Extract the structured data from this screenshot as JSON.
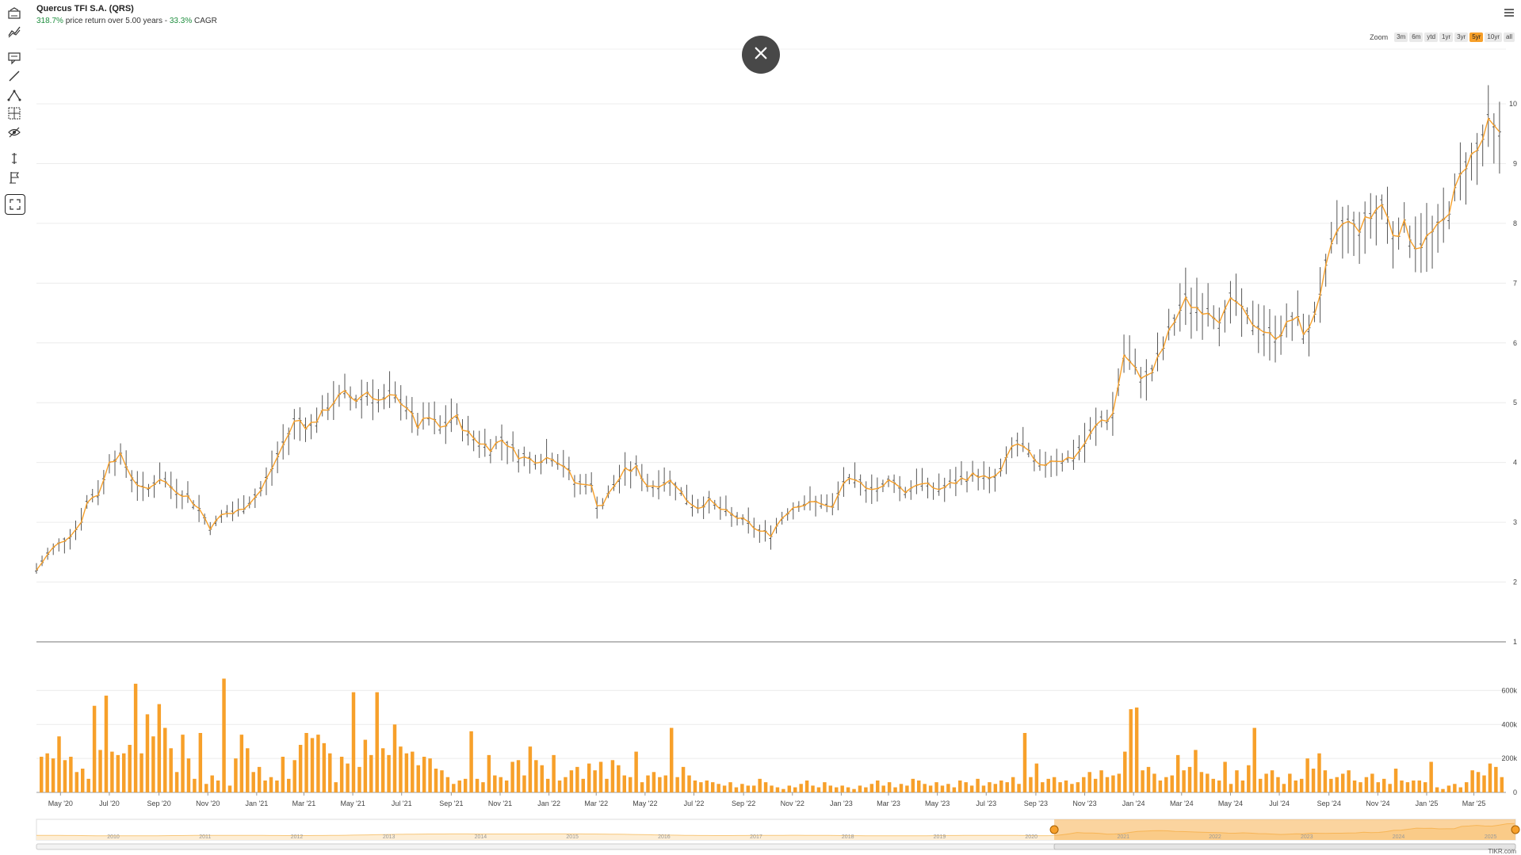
{
  "header": {
    "title": "Quercus TFI S.A. (QRS)",
    "return_pct": "318.7%",
    "return_text": "price return over 5.00 years -",
    "cagr_pct": "33.3%",
    "cagr_text": "CAGR"
  },
  "zoom": {
    "label": "Zoom",
    "options": [
      "3m",
      "6m",
      "ytd",
      "1yr",
      "3yr",
      "5yr",
      "10yr",
      "all"
    ],
    "active": "5yr"
  },
  "toolbar_icons": [
    "indicators-icon",
    "comparison-icon",
    "annotation-icon",
    "line-icon",
    "fibonacci-icon",
    "measure-icon",
    "visibility-icon",
    "vertical-line-icon",
    "flag-icon",
    "fullscreen-icon"
  ],
  "colors": {
    "accent": "#f7a02a",
    "ohlc": "#555555",
    "close_bg": "#484848"
  },
  "watermark": "TIKR.com",
  "chart_data": {
    "type": "line",
    "title": "Quercus TFI S.A. (QRS)",
    "price": {
      "ylim": [
        1,
        10
      ],
      "yticks": [
        1,
        2,
        3,
        4,
        5,
        6,
        7,
        8,
        9,
        10
      ],
      "anchors": [
        [
          "2020-04-01",
          2.2
        ],
        [
          "2020-04-20",
          2.55
        ],
        [
          "2020-05-10",
          2.75
        ],
        [
          "2020-05-25",
          2.95
        ],
        [
          "2020-06-05",
          3.4
        ],
        [
          "2020-06-20",
          3.5
        ],
        [
          "2020-07-01",
          4.05
        ],
        [
          "2020-07-15",
          4.1
        ],
        [
          "2020-08-01",
          3.7
        ],
        [
          "2020-08-15",
          3.5
        ],
        [
          "2020-09-01",
          3.75
        ],
        [
          "2020-09-20",
          3.55
        ],
        [
          "2020-10-05",
          3.45
        ],
        [
          "2020-10-20",
          3.25
        ],
        [
          "2020-11-05",
          2.9
        ],
        [
          "2020-11-20",
          3.15
        ],
        [
          "2020-12-05",
          3.15
        ],
        [
          "2020-12-20",
          3.3
        ],
        [
          "2021-01-05",
          3.5
        ],
        [
          "2021-01-20",
          3.9
        ],
        [
          "2021-02-05",
          4.35
        ],
        [
          "2021-02-20",
          4.75
        ],
        [
          "2021-03-05",
          4.6
        ],
        [
          "2021-03-20",
          4.75
        ],
        [
          "2021-04-05",
          5.0
        ],
        [
          "2021-04-20",
          5.15
        ],
        [
          "2021-05-05",
          5.05
        ],
        [
          "2021-05-20",
          5.2
        ],
        [
          "2021-06-05",
          5.0
        ],
        [
          "2021-06-20",
          5.1
        ],
        [
          "2021-07-05",
          5.0
        ],
        [
          "2021-07-20",
          4.6
        ],
        [
          "2021-08-05",
          4.75
        ],
        [
          "2021-08-20",
          4.55
        ],
        [
          "2021-09-05",
          4.8
        ],
        [
          "2021-09-20",
          4.5
        ],
        [
          "2021-10-05",
          4.35
        ],
        [
          "2021-10-20",
          4.25
        ],
        [
          "2021-11-05",
          4.4
        ],
        [
          "2021-11-20",
          4.15
        ],
        [
          "2021-12-05",
          4.05
        ],
        [
          "2021-12-20",
          4.05
        ],
        [
          "2022-01-05",
          4.1
        ],
        [
          "2022-01-20",
          3.95
        ],
        [
          "2022-02-05",
          3.6
        ],
        [
          "2022-02-20",
          3.7
        ],
        [
          "2022-03-05",
          3.2
        ],
        [
          "2022-03-20",
          3.55
        ],
        [
          "2022-04-05",
          3.85
        ],
        [
          "2022-04-20",
          3.9
        ],
        [
          "2022-05-05",
          3.6
        ],
        [
          "2022-05-20",
          3.65
        ],
        [
          "2022-06-05",
          3.7
        ],
        [
          "2022-06-20",
          3.4
        ],
        [
          "2022-07-05",
          3.25
        ],
        [
          "2022-07-20",
          3.35
        ],
        [
          "2022-08-05",
          3.2
        ],
        [
          "2022-08-20",
          3.1
        ],
        [
          "2022-09-05",
          3.0
        ],
        [
          "2022-09-20",
          2.85
        ],
        [
          "2022-10-05",
          2.8
        ],
        [
          "2022-10-20",
          3.1
        ],
        [
          "2022-11-05",
          3.3
        ],
        [
          "2022-11-20",
          3.3
        ],
        [
          "2022-12-05",
          3.35
        ],
        [
          "2022-12-20",
          3.2
        ],
        [
          "2023-01-05",
          3.7
        ],
        [
          "2023-01-20",
          3.65
        ],
        [
          "2023-02-05",
          3.6
        ],
        [
          "2023-02-20",
          3.55
        ],
        [
          "2023-03-05",
          3.75
        ],
        [
          "2023-03-20",
          3.5
        ],
        [
          "2023-04-05",
          3.65
        ],
        [
          "2023-04-20",
          3.6
        ],
        [
          "2023-05-05",
          3.55
        ],
        [
          "2023-05-20",
          3.65
        ],
        [
          "2023-06-05",
          3.75
        ],
        [
          "2023-06-20",
          3.8
        ],
        [
          "2023-07-05",
          3.7
        ],
        [
          "2023-07-20",
          3.85
        ],
        [
          "2023-08-05",
          4.35
        ],
        [
          "2023-08-20",
          4.2
        ],
        [
          "2023-09-05",
          3.9
        ],
        [
          "2023-09-20",
          4.05
        ],
        [
          "2023-10-05",
          4.05
        ],
        [
          "2023-10-20",
          4.1
        ],
        [
          "2023-11-05",
          4.4
        ],
        [
          "2023-11-20",
          4.7
        ],
        [
          "2023-12-05",
          4.75
        ],
        [
          "2023-12-20",
          5.8
        ],
        [
          "2024-01-05",
          5.5
        ],
        [
          "2024-01-20",
          5.4
        ],
        [
          "2024-02-05",
          5.85
        ],
        [
          "2024-02-20",
          6.35
        ],
        [
          "2024-03-05",
          6.7
        ],
        [
          "2024-03-20",
          6.6
        ],
        [
          "2024-04-05",
          6.55
        ],
        [
          "2024-04-20",
          6.4
        ],
        [
          "2024-05-05",
          6.75
        ],
        [
          "2024-05-20",
          6.4
        ],
        [
          "2024-06-05",
          6.3
        ],
        [
          "2024-06-20",
          6.1
        ],
        [
          "2024-07-05",
          6.2
        ],
        [
          "2024-07-20",
          6.45
        ],
        [
          "2024-08-05",
          6.1
        ],
        [
          "2024-08-20",
          6.8
        ],
        [
          "2024-09-05",
          7.6
        ],
        [
          "2024-09-20",
          8.05
        ],
        [
          "2024-10-05",
          7.9
        ],
        [
          "2024-10-20",
          8.05
        ],
        [
          "2024-11-05",
          8.35
        ],
        [
          "2024-11-20",
          7.85
        ],
        [
          "2024-12-05",
          7.95
        ],
        [
          "2024-12-20",
          7.6
        ],
        [
          "2025-01-05",
          7.8
        ],
        [
          "2025-01-20",
          7.95
        ],
        [
          "2025-02-05",
          8.5
        ],
        [
          "2025-02-20",
          9.05
        ],
        [
          "2025-03-05",
          9.2
        ],
        [
          "2025-03-20",
          9.65
        ],
        [
          "2025-04-05",
          9.4
        ]
      ]
    },
    "volume": {
      "ylim": [
        0,
        700000
      ],
      "yticks": [
        0,
        200000,
        400000,
        600000
      ],
      "ytick_labels": [
        "0",
        "200k",
        "400k",
        "600k"
      ],
      "values": [
        210000,
        230000,
        200000,
        330000,
        190000,
        210000,
        120000,
        140000,
        80000,
        510000,
        250000,
        570000,
        240000,
        220000,
        230000,
        280000,
        640000,
        230000,
        460000,
        330000,
        520000,
        380000,
        260000,
        120000,
        340000,
        200000,
        80000,
        350000,
        50000,
        100000,
        70000,
        670000,
        40000,
        200000,
        340000,
        260000,
        120000,
        150000,
        70000,
        90000,
        70000,
        210000,
        80000,
        190000,
        280000,
        350000,
        320000,
        340000,
        290000,
        230000,
        60000,
        210000,
        170000,
        590000,
        150000,
        310000,
        220000,
        590000,
        260000,
        220000,
        400000,
        270000,
        230000,
        240000,
        160000,
        210000,
        200000,
        140000,
        130000,
        90000,
        50000,
        70000,
        80000,
        360000,
        80000,
        60000,
        220000,
        100000,
        90000,
        70000,
        180000,
        190000,
        100000,
        270000,
        190000,
        160000,
        80000,
        220000,
        70000,
        90000,
        130000,
        150000,
        80000,
        170000,
        130000,
        180000,
        80000,
        190000,
        160000,
        100000,
        90000,
        240000,
        60000,
        100000,
        120000,
        90000,
        100000,
        380000,
        90000,
        150000,
        100000,
        70000,
        60000,
        70000,
        60000,
        50000,
        40000,
        60000,
        30000,
        50000,
        40000,
        40000,
        80000,
        60000,
        40000,
        30000,
        20000,
        40000,
        30000,
        50000,
        70000,
        40000,
        30000,
        60000,
        40000,
        30000,
        40000,
        30000,
        20000,
        40000,
        30000,
        50000,
        70000,
        40000,
        60000,
        30000,
        50000,
        40000,
        80000,
        70000,
        50000,
        40000,
        60000,
        40000,
        50000,
        30000,
        70000,
        60000,
        40000,
        80000,
        40000,
        60000,
        50000,
        70000,
        60000,
        90000,
        50000,
        350000,
        90000,
        170000,
        60000,
        80000,
        90000,
        60000,
        70000,
        50000,
        60000,
        90000,
        120000,
        80000,
        130000,
        90000,
        100000,
        110000,
        240000,
        490000,
        500000,
        130000,
        150000,
        110000,
        70000,
        90000,
        100000,
        220000,
        130000,
        150000,
        250000,
        120000,
        110000,
        80000,
        70000,
        180000,
        50000,
        130000,
        70000,
        160000,
        380000,
        80000,
        110000,
        130000,
        90000,
        50000,
        110000,
        70000,
        80000,
        200000,
        140000,
        230000,
        130000,
        80000,
        90000,
        110000,
        130000,
        70000,
        60000,
        90000,
        110000,
        60000,
        80000,
        50000,
        140000,
        70000,
        60000,
        70000,
        70000,
        60000,
        180000,
        30000,
        20000,
        40000,
        50000,
        30000,
        60000,
        130000,
        120000,
        100000,
        170000,
        150000,
        90000
      ]
    },
    "x_ticks": [
      "May '20",
      "Jul '20",
      "Sep '20",
      "Nov '20",
      "Jan '21",
      "Mar '21",
      "May '21",
      "Jul '21",
      "Sep '21",
      "Nov '21",
      "Jan '22",
      "Mar '22",
      "May '22",
      "Jul '22",
      "Sep '22",
      "Nov '22",
      "Jan '23",
      "Mar '23",
      "May '23",
      "Jul '23",
      "Sep '23",
      "Nov '23",
      "Jan '24",
      "Mar '24",
      "May '24",
      "Jul '24",
      "Sep '24",
      "Nov '24",
      "Jan '25",
      "Mar '25"
    ],
    "x_tick_dates": [
      "2020-05-01",
      "2020-07-01",
      "2020-09-01",
      "2020-11-01",
      "2021-01-01",
      "2021-03-01",
      "2021-05-01",
      "2021-07-01",
      "2021-09-01",
      "2021-11-01",
      "2022-01-01",
      "2022-03-01",
      "2022-05-01",
      "2022-07-01",
      "2022-09-01",
      "2022-11-01",
      "2023-01-01",
      "2023-03-01",
      "2023-05-01",
      "2023-07-01",
      "2023-09-01",
      "2023-11-01",
      "2024-01-01",
      "2024-03-01",
      "2024-05-01",
      "2024-07-01",
      "2024-09-01",
      "2024-11-01",
      "2025-01-01",
      "2025-03-01"
    ],
    "x_range": [
      "2020-04-01",
      "2025-04-10"
    ],
    "navigator": {
      "year_labels": [
        "2010",
        "2011",
        "2012",
        "2013",
        "2014",
        "2015",
        "2016",
        "2017",
        "2018",
        "2019",
        "2020",
        "2021",
        "2022",
        "2023",
        "2024",
        "2025"
      ],
      "selected_range": [
        "2020-04-01",
        "2025-04-10"
      ],
      "full_range": [
        "2009-03-01",
        "2025-04-10"
      ]
    }
  }
}
